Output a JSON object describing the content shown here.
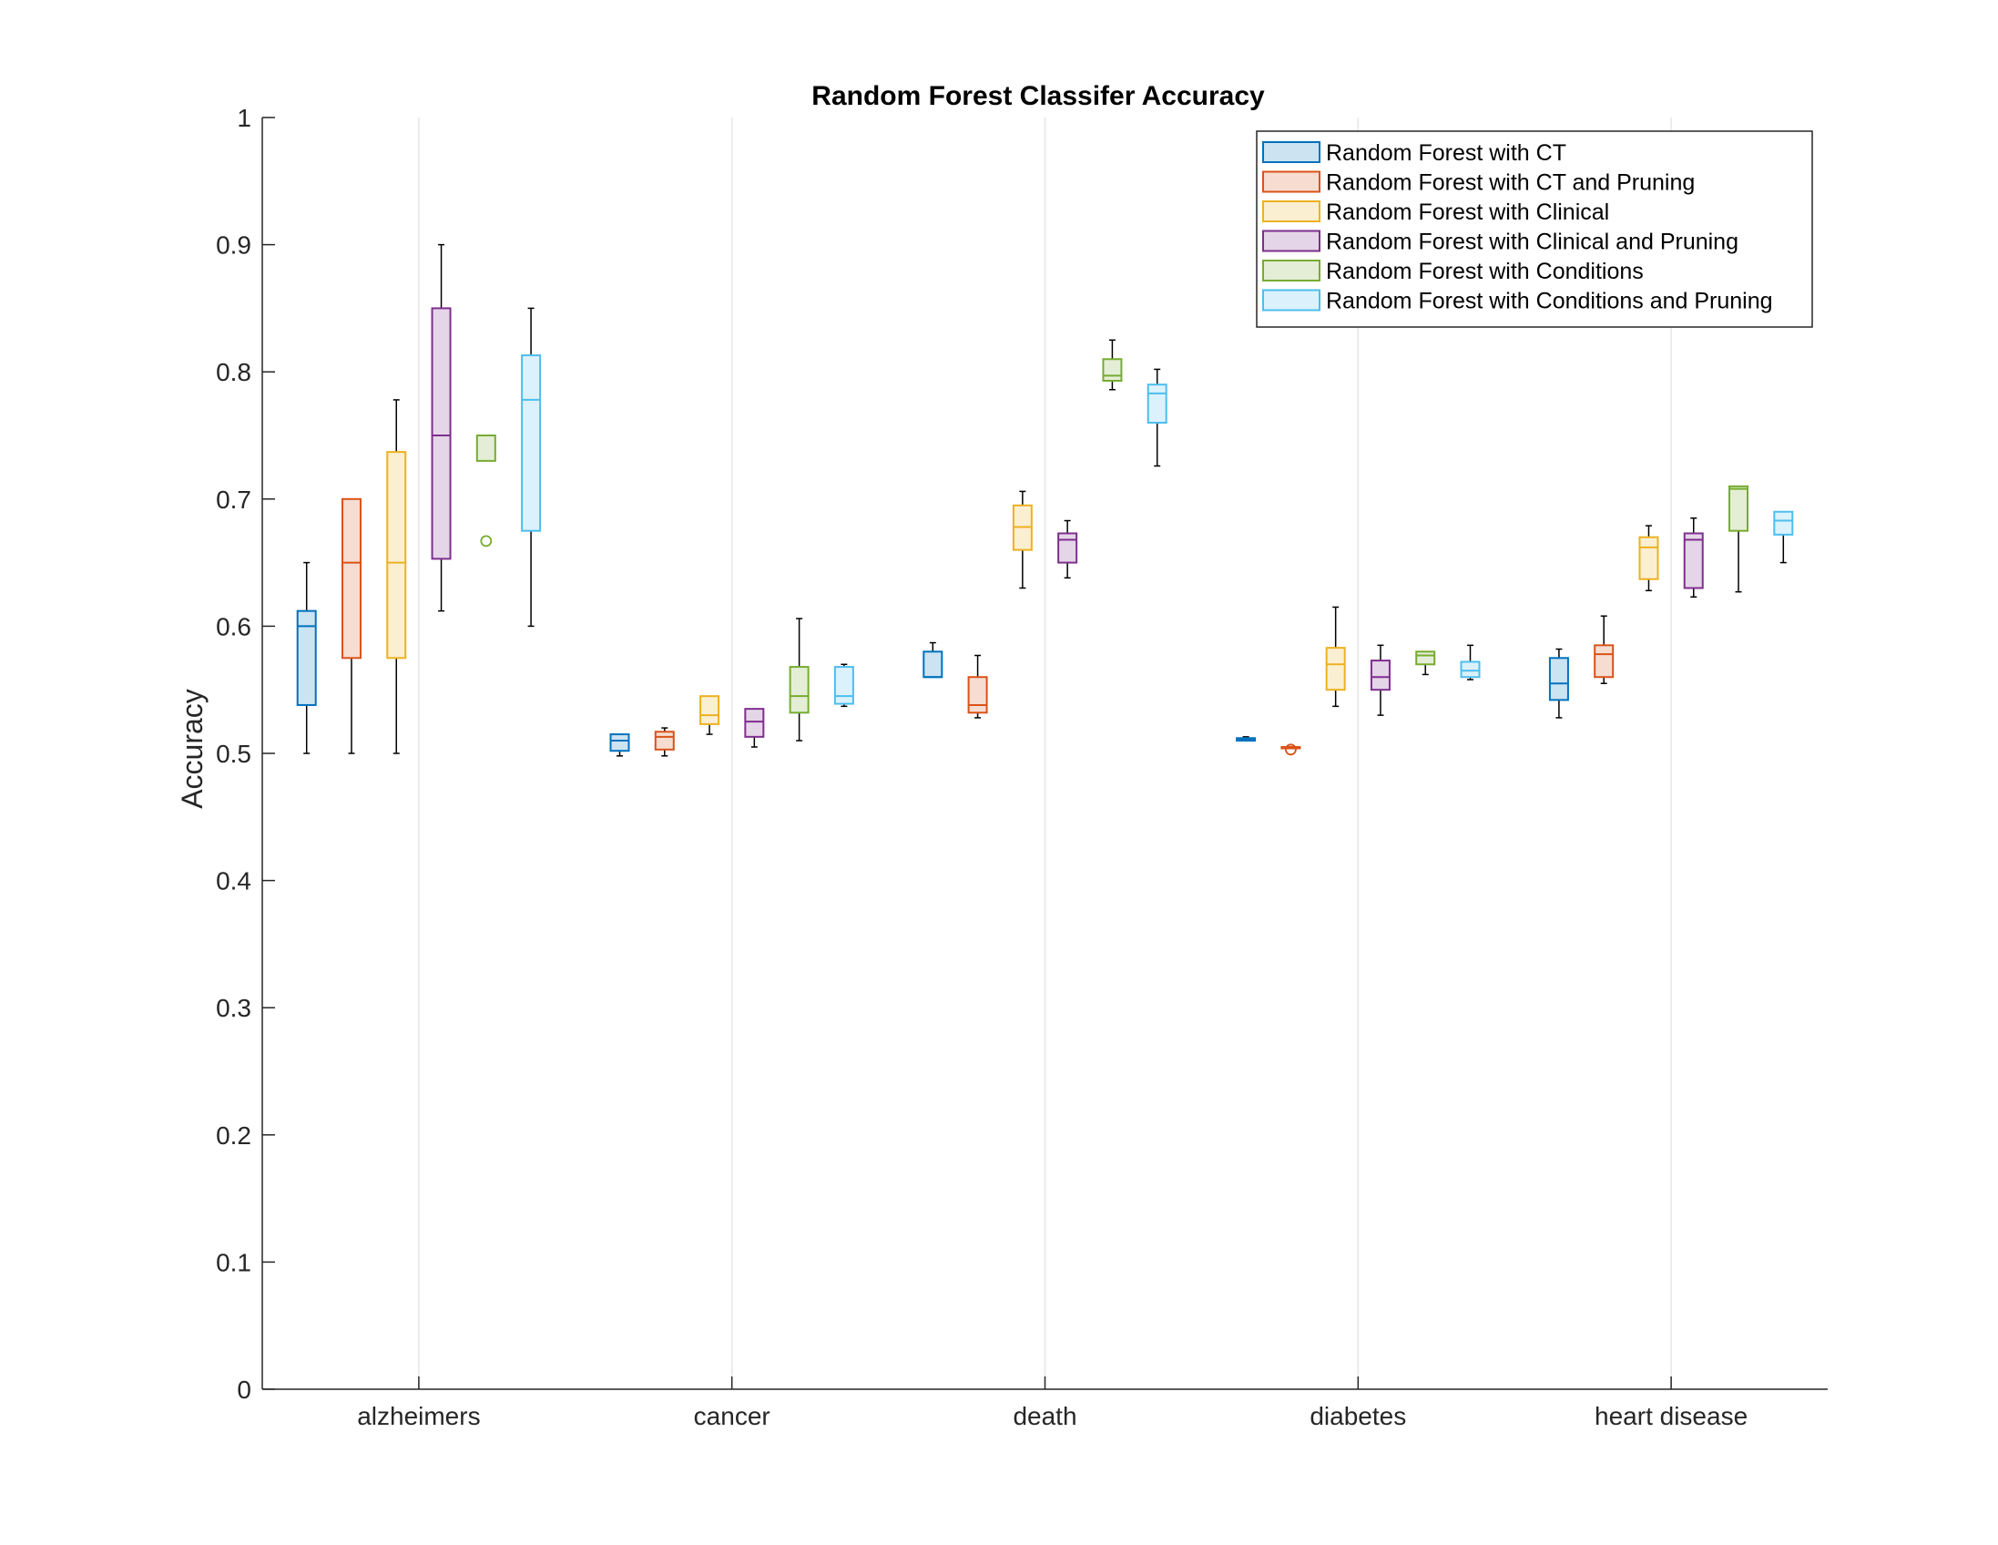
{
  "chart_data": {
    "type": "boxplot",
    "title": "Random Forest Classifer Accuracy",
    "ylabel": "Accuracy",
    "xlabel": "",
    "ylim": [
      0,
      1
    ],
    "yticks": [
      0,
      0.1,
      0.2,
      0.3,
      0.4,
      0.5,
      0.6,
      0.7,
      0.8,
      0.9,
      1
    ],
    "ytick_labels": [
      "0",
      "0.1",
      "0.2",
      "0.3",
      "0.4",
      "0.5",
      "0.6",
      "0.7",
      "0.8",
      "0.9",
      "1"
    ],
    "categories": [
      "alzheimers",
      "cancer",
      "death",
      "diabetes",
      "heart disease"
    ],
    "grid": "x",
    "legend_position": "top-right",
    "series": [
      {
        "name": "Random Forest with CT",
        "color": "#0072BD",
        "fill": "#CCE3F2",
        "boxes": [
          {
            "min": 0.5,
            "q1": 0.538,
            "median": 0.6,
            "q3": 0.612,
            "max": 0.65,
            "outliers": []
          },
          {
            "min": 0.498,
            "q1": 0.502,
            "median": 0.51,
            "q3": 0.515,
            "max": 0.515,
            "outliers": []
          },
          {
            "min": 0.56,
            "q1": 0.56,
            "median": 0.56,
            "q3": 0.58,
            "max": 0.587,
            "outliers": []
          },
          {
            "min": 0.51,
            "q1": 0.51,
            "median": 0.511,
            "q3": 0.512,
            "max": 0.513,
            "outliers": []
          },
          {
            "min": 0.528,
            "q1": 0.542,
            "median": 0.555,
            "q3": 0.575,
            "max": 0.582,
            "outliers": []
          }
        ]
      },
      {
        "name": "Random Forest with CT and Pruning",
        "color": "#D95319",
        "fill": "#F7DDD1",
        "boxes": [
          {
            "min": 0.5,
            "q1": 0.575,
            "median": 0.65,
            "q3": 0.7,
            "max": 0.7,
            "outliers": []
          },
          {
            "min": 0.498,
            "q1": 0.503,
            "median": 0.513,
            "q3": 0.517,
            "max": 0.52,
            "outliers": []
          },
          {
            "min": 0.528,
            "q1": 0.532,
            "median": 0.538,
            "q3": 0.56,
            "max": 0.577,
            "outliers": []
          },
          {
            "min": 0.505,
            "q1": 0.505,
            "median": 0.505,
            "q3": 0.505,
            "max": 0.505,
            "outliers": [
              0.503
            ]
          },
          {
            "min": 0.555,
            "q1": 0.56,
            "median": 0.578,
            "q3": 0.585,
            "max": 0.608,
            "outliers": []
          }
        ]
      },
      {
        "name": "Random Forest with Clinical",
        "color": "#EDB120",
        "fill": "#FBEFD2",
        "boxes": [
          {
            "min": 0.5,
            "q1": 0.575,
            "median": 0.65,
            "q3": 0.737,
            "max": 0.778,
            "outliers": []
          },
          {
            "min": 0.515,
            "q1": 0.523,
            "median": 0.53,
            "q3": 0.545,
            "max": 0.545,
            "outliers": []
          },
          {
            "min": 0.63,
            "q1": 0.66,
            "median": 0.678,
            "q3": 0.695,
            "max": 0.706,
            "outliers": []
          },
          {
            "min": 0.537,
            "q1": 0.55,
            "median": 0.57,
            "q3": 0.583,
            "max": 0.615,
            "outliers": []
          },
          {
            "min": 0.628,
            "q1": 0.637,
            "median": 0.662,
            "q3": 0.67,
            "max": 0.679,
            "outliers": []
          }
        ]
      },
      {
        "name": "Random Forest with Clinical and Pruning",
        "color": "#7E2F8E",
        "fill": "#E5D5E8",
        "boxes": [
          {
            "min": 0.612,
            "q1": 0.653,
            "median": 0.75,
            "q3": 0.85,
            "max": 0.9,
            "outliers": []
          },
          {
            "min": 0.505,
            "q1": 0.513,
            "median": 0.525,
            "q3": 0.535,
            "max": 0.535,
            "outliers": []
          },
          {
            "min": 0.638,
            "q1": 0.65,
            "median": 0.668,
            "q3": 0.673,
            "max": 0.683,
            "outliers": []
          },
          {
            "min": 0.53,
            "q1": 0.55,
            "median": 0.56,
            "q3": 0.573,
            "max": 0.585,
            "outliers": []
          },
          {
            "min": 0.623,
            "q1": 0.63,
            "median": 0.668,
            "q3": 0.673,
            "max": 0.685,
            "outliers": []
          }
        ]
      },
      {
        "name": "Random Forest with Conditions",
        "color": "#77AC30",
        "fill": "#E4EED6",
        "boxes": [
          {
            "min": 0.73,
            "q1": 0.73,
            "median": 0.75,
            "q3": 0.75,
            "max": 0.75,
            "outliers": [
              0.667
            ]
          },
          {
            "min": 0.51,
            "q1": 0.532,
            "median": 0.545,
            "q3": 0.568,
            "max": 0.606,
            "outliers": []
          },
          {
            "min": 0.786,
            "q1": 0.793,
            "median": 0.797,
            "q3": 0.81,
            "max": 0.825,
            "outliers": []
          },
          {
            "min": 0.562,
            "q1": 0.57,
            "median": 0.577,
            "q3": 0.58,
            "max": 0.58,
            "outliers": []
          },
          {
            "min": 0.627,
            "q1": 0.675,
            "median": 0.708,
            "q3": 0.71,
            "max": 0.71,
            "outliers": []
          }
        ]
      },
      {
        "name": "Random Forest with Conditions and Pruning",
        "color": "#4DBEEE",
        "fill": "#DBF2FC",
        "boxes": [
          {
            "min": 0.6,
            "q1": 0.675,
            "median": 0.778,
            "q3": 0.813,
            "max": 0.85,
            "outliers": []
          },
          {
            "min": 0.537,
            "q1": 0.539,
            "median": 0.545,
            "q3": 0.568,
            "max": 0.57,
            "outliers": []
          },
          {
            "min": 0.726,
            "q1": 0.76,
            "median": 0.783,
            "q3": 0.79,
            "max": 0.802,
            "outliers": []
          },
          {
            "min": 0.558,
            "q1": 0.56,
            "median": 0.565,
            "q3": 0.572,
            "max": 0.585,
            "outliers": []
          },
          {
            "min": 0.65,
            "q1": 0.672,
            "median": 0.683,
            "q3": 0.69,
            "max": 0.69,
            "outliers": []
          }
        ]
      }
    ]
  }
}
